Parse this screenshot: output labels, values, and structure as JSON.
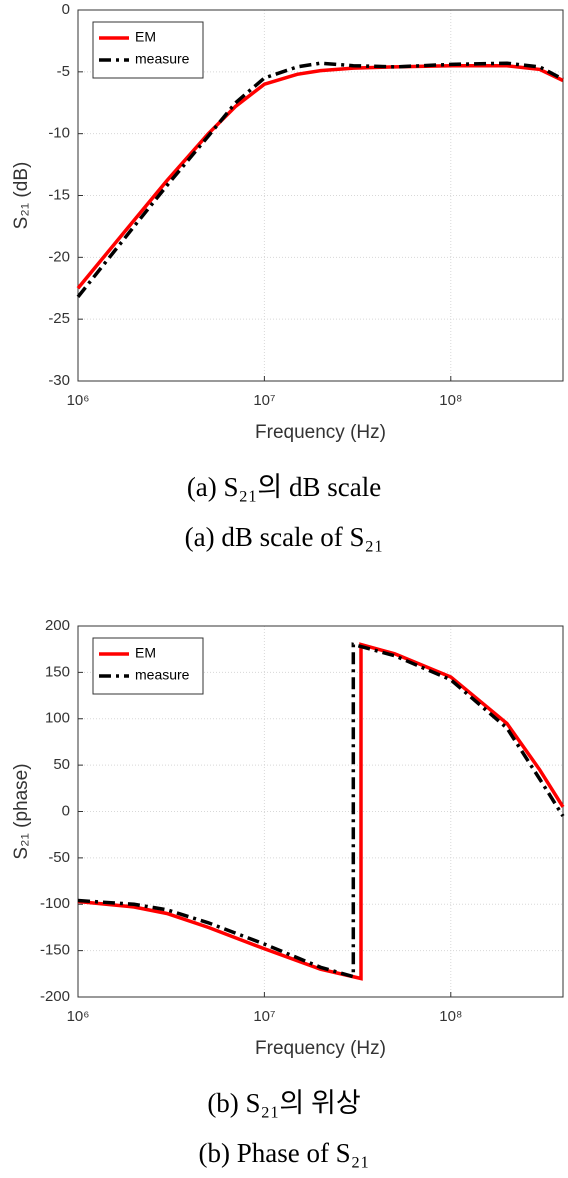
{
  "chart_data": [
    {
      "type": "line",
      "xlabel": "Frequency (Hz)",
      "ylabel": "S₂₁ (dB)",
      "xscale": "log",
      "xlim": [
        1000000,
        400000000
      ],
      "xticks": [
        {
          "value": 1000000,
          "label": "10⁶"
        },
        {
          "value": 10000000,
          "label": "10⁷"
        },
        {
          "value": 100000000,
          "label": "10⁸"
        }
      ],
      "ylim": [
        -30,
        0
      ],
      "yticks": [
        0,
        -5,
        -10,
        -15,
        -20,
        -25,
        -30
      ],
      "grid": true,
      "legend": "upper left",
      "series": [
        {
          "name": "EM",
          "color": "#ff0000",
          "line_style": "solid",
          "x": [
            1000000,
            2000000,
            3000000,
            5000000,
            7000000,
            10000000,
            15000000,
            20000000,
            30000000,
            50000000,
            100000000,
            200000000,
            300000000,
            400000000
          ],
          "values": [
            -22.5,
            -17,
            -13.8,
            -10,
            -7.8,
            -6,
            -5.2,
            -4.9,
            -4.7,
            -4.6,
            -4.5,
            -4.5,
            -4.8,
            -5.7
          ]
        },
        {
          "name": "measure",
          "color": "#000000",
          "line_style": "dashdot",
          "x": [
            1000000,
            2000000,
            3000000,
            5000000,
            7000000,
            10000000,
            15000000,
            20000000,
            30000000,
            50000000,
            100000000,
            200000000,
            300000000,
            400000000
          ],
          "values": [
            -23.2,
            -17.5,
            -14.2,
            -10.2,
            -7.5,
            -5.5,
            -4.6,
            -4.3,
            -4.5,
            -4.6,
            -4.4,
            -4.3,
            -4.6,
            -5.6
          ]
        }
      ],
      "caption": [
        "(a) S₂₁의 dB scale",
        "(a) dB scale of S₂₁"
      ]
    },
    {
      "type": "line",
      "xlabel": "Frequency (Hz)",
      "ylabel": "S₂₁ (phase)",
      "xscale": "log",
      "xlim": [
        1000000,
        400000000
      ],
      "xticks": [
        {
          "value": 1000000,
          "label": "10⁶"
        },
        {
          "value": 10000000,
          "label": "10⁷"
        },
        {
          "value": 100000000,
          "label": "10⁸"
        }
      ],
      "ylim": [
        -200,
        200
      ],
      "yticks": [
        200,
        150,
        100,
        50,
        0,
        -50,
        -100,
        -150,
        -200
      ],
      "grid": true,
      "legend": "upper left",
      "series": [
        {
          "name": "EM",
          "color": "#ff0000",
          "line_style": "solid",
          "x": [
            1000000,
            2000000,
            3000000,
            5000000,
            10000000,
            20000000,
            33000000,
            33000000,
            50000000,
            100000000,
            200000000,
            300000000,
            400000000
          ],
          "values": [
            -97,
            -103,
            -110,
            -125,
            -148,
            -170,
            -180,
            180,
            170,
            145,
            95,
            45,
            5
          ]
        },
        {
          "name": "measure",
          "color": "#000000",
          "line_style": "dashdot",
          "x": [
            1000000,
            2000000,
            3000000,
            5000000,
            10000000,
            20000000,
            30000000,
            30000000,
            50000000,
            100000000,
            200000000,
            300000000,
            400000000
          ],
          "values": [
            -96,
            -100,
            -106,
            -120,
            -143,
            -168,
            -178,
            180,
            168,
            142,
            90,
            35,
            -5
          ]
        }
      ],
      "caption": [
        "(b) S₂₁의 위상",
        "(b) Phase of S₂₁"
      ]
    }
  ]
}
